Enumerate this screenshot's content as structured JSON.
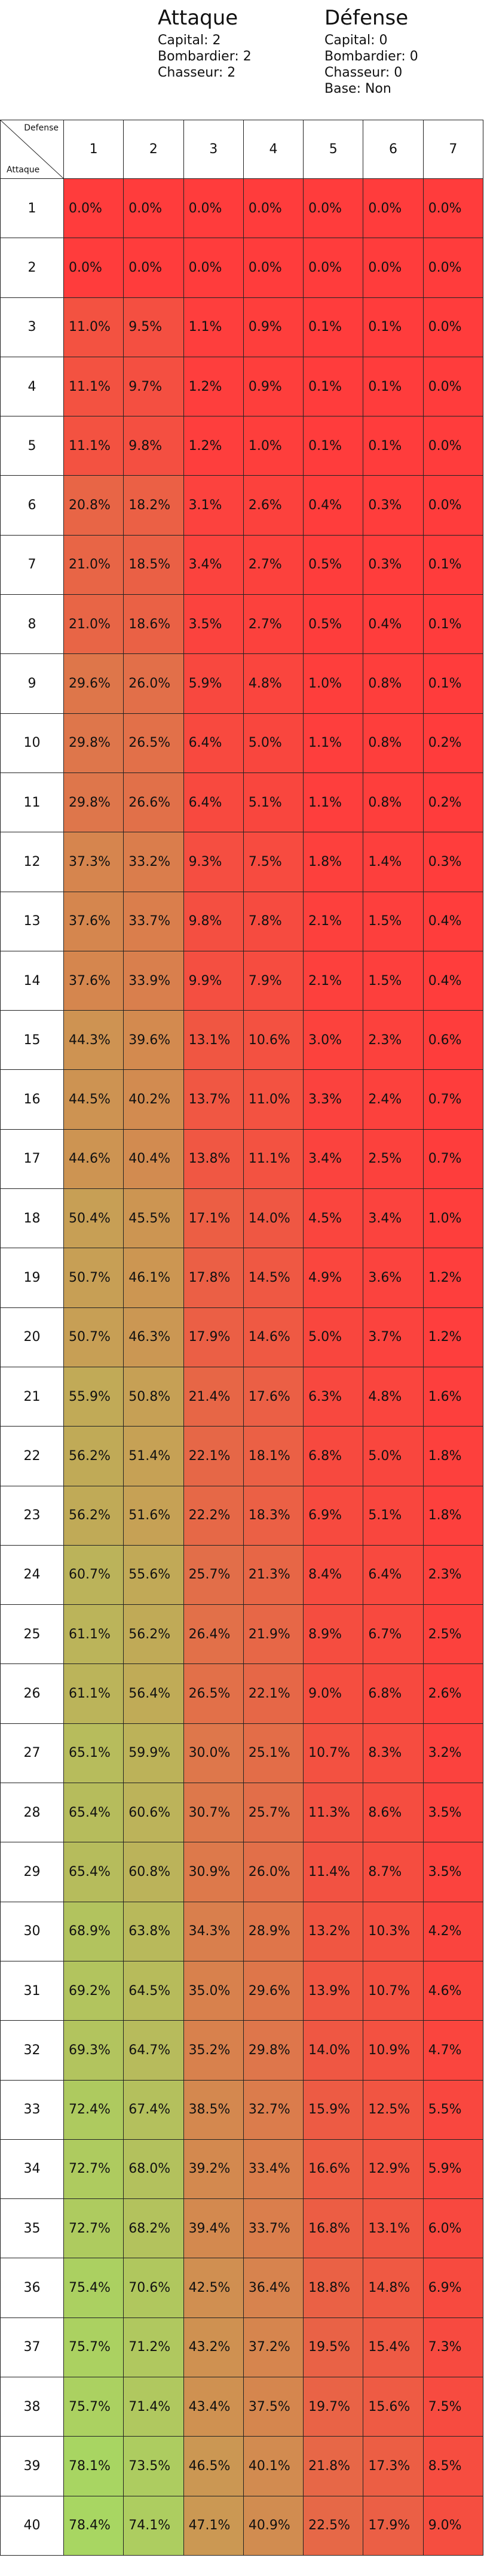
{
  "attack": {
    "title": "Attaque",
    "lines": [
      "Capital: 2",
      "Bombardier: 2",
      "Chasseur: 2"
    ]
  },
  "defense": {
    "title": "Défense",
    "lines": [
      "Capital: 0",
      "Bombardier: 0",
      "Chasseur: 0",
      "Base: Non"
    ]
  },
  "corner": {
    "defense_label": "Defense",
    "attack_label": "Attaque"
  },
  "columns": [
    "1",
    "2",
    "3",
    "4",
    "5",
    "6",
    "7"
  ],
  "colors": {
    "low": "#ff3c3c",
    "high": "#a6d963"
  },
  "rows": [
    {
      "label": "1",
      "values": [
        "0.0%",
        "0.0%",
        "0.0%",
        "0.0%",
        "0.0%",
        "0.0%",
        "0.0%"
      ]
    },
    {
      "label": "2",
      "values": [
        "0.0%",
        "0.0%",
        "0.0%",
        "0.0%",
        "0.0%",
        "0.0%",
        "0.0%"
      ]
    },
    {
      "label": "3",
      "values": [
        "11.0%",
        "9.5%",
        "1.1%",
        "0.9%",
        "0.1%",
        "0.1%",
        "0.0%"
      ]
    },
    {
      "label": "4",
      "values": [
        "11.1%",
        "9.7%",
        "1.2%",
        "0.9%",
        "0.1%",
        "0.1%",
        "0.0%"
      ]
    },
    {
      "label": "5",
      "values": [
        "11.1%",
        "9.8%",
        "1.2%",
        "1.0%",
        "0.1%",
        "0.1%",
        "0.0%"
      ]
    },
    {
      "label": "6",
      "values": [
        "20.8%",
        "18.2%",
        "3.1%",
        "2.6%",
        "0.4%",
        "0.3%",
        "0.0%"
      ]
    },
    {
      "label": "7",
      "values": [
        "21.0%",
        "18.5%",
        "3.4%",
        "2.7%",
        "0.5%",
        "0.3%",
        "0.1%"
      ]
    },
    {
      "label": "8",
      "values": [
        "21.0%",
        "18.6%",
        "3.5%",
        "2.7%",
        "0.5%",
        "0.4%",
        "0.1%"
      ]
    },
    {
      "label": "9",
      "values": [
        "29.6%",
        "26.0%",
        "5.9%",
        "4.8%",
        "1.0%",
        "0.8%",
        "0.1%"
      ]
    },
    {
      "label": "10",
      "values": [
        "29.8%",
        "26.5%",
        "6.4%",
        "5.0%",
        "1.1%",
        "0.8%",
        "0.2%"
      ]
    },
    {
      "label": "11",
      "values": [
        "29.8%",
        "26.6%",
        "6.4%",
        "5.1%",
        "1.1%",
        "0.8%",
        "0.2%"
      ]
    },
    {
      "label": "12",
      "values": [
        "37.3%",
        "33.2%",
        "9.3%",
        "7.5%",
        "1.8%",
        "1.4%",
        "0.3%"
      ]
    },
    {
      "label": "13",
      "values": [
        "37.6%",
        "33.7%",
        "9.8%",
        "7.8%",
        "2.1%",
        "1.5%",
        "0.4%"
      ]
    },
    {
      "label": "14",
      "values": [
        "37.6%",
        "33.9%",
        "9.9%",
        "7.9%",
        "2.1%",
        "1.5%",
        "0.4%"
      ]
    },
    {
      "label": "15",
      "values": [
        "44.3%",
        "39.6%",
        "13.1%",
        "10.6%",
        "3.0%",
        "2.3%",
        "0.6%"
      ]
    },
    {
      "label": "16",
      "values": [
        "44.5%",
        "40.2%",
        "13.7%",
        "11.0%",
        "3.3%",
        "2.4%",
        "0.7%"
      ]
    },
    {
      "label": "17",
      "values": [
        "44.6%",
        "40.4%",
        "13.8%",
        "11.1%",
        "3.4%",
        "2.5%",
        "0.7%"
      ]
    },
    {
      "label": "18",
      "values": [
        "50.4%",
        "45.5%",
        "17.1%",
        "14.0%",
        "4.5%",
        "3.4%",
        "1.0%"
      ]
    },
    {
      "label": "19",
      "values": [
        "50.7%",
        "46.1%",
        "17.8%",
        "14.5%",
        "4.9%",
        "3.6%",
        "1.2%"
      ]
    },
    {
      "label": "20",
      "values": [
        "50.7%",
        "46.3%",
        "17.9%",
        "14.6%",
        "5.0%",
        "3.7%",
        "1.2%"
      ]
    },
    {
      "label": "21",
      "values": [
        "55.9%",
        "50.8%",
        "21.4%",
        "17.6%",
        "6.3%",
        "4.8%",
        "1.6%"
      ]
    },
    {
      "label": "22",
      "values": [
        "56.2%",
        "51.4%",
        "22.1%",
        "18.1%",
        "6.8%",
        "5.0%",
        "1.8%"
      ]
    },
    {
      "label": "23",
      "values": [
        "56.2%",
        "51.6%",
        "22.2%",
        "18.3%",
        "6.9%",
        "5.1%",
        "1.8%"
      ]
    },
    {
      "label": "24",
      "values": [
        "60.7%",
        "55.6%",
        "25.7%",
        "21.3%",
        "8.4%",
        "6.4%",
        "2.3%"
      ]
    },
    {
      "label": "25",
      "values": [
        "61.1%",
        "56.2%",
        "26.4%",
        "21.9%",
        "8.9%",
        "6.7%",
        "2.5%"
      ]
    },
    {
      "label": "26",
      "values": [
        "61.1%",
        "56.4%",
        "26.5%",
        "22.1%",
        "9.0%",
        "6.8%",
        "2.6%"
      ]
    },
    {
      "label": "27",
      "values": [
        "65.1%",
        "59.9%",
        "30.0%",
        "25.1%",
        "10.7%",
        "8.3%",
        "3.2%"
      ]
    },
    {
      "label": "28",
      "values": [
        "65.4%",
        "60.6%",
        "30.7%",
        "25.7%",
        "11.3%",
        "8.6%",
        "3.5%"
      ]
    },
    {
      "label": "29",
      "values": [
        "65.4%",
        "60.8%",
        "30.9%",
        "26.0%",
        "11.4%",
        "8.7%",
        "3.5%"
      ]
    },
    {
      "label": "30",
      "values": [
        "68.9%",
        "63.8%",
        "34.3%",
        "28.9%",
        "13.2%",
        "10.3%",
        "4.2%"
      ]
    },
    {
      "label": "31",
      "values": [
        "69.2%",
        "64.5%",
        "35.0%",
        "29.6%",
        "13.9%",
        "10.7%",
        "4.6%"
      ]
    },
    {
      "label": "32",
      "values": [
        "69.3%",
        "64.7%",
        "35.2%",
        "29.8%",
        "14.0%",
        "10.9%",
        "4.7%"
      ]
    },
    {
      "label": "33",
      "values": [
        "72.4%",
        "67.4%",
        "38.5%",
        "32.7%",
        "15.9%",
        "12.5%",
        "5.5%"
      ]
    },
    {
      "label": "34",
      "values": [
        "72.7%",
        "68.0%",
        "39.2%",
        "33.4%",
        "16.6%",
        "12.9%",
        "5.9%"
      ]
    },
    {
      "label": "35",
      "values": [
        "72.7%",
        "68.2%",
        "39.4%",
        "33.7%",
        "16.8%",
        "13.1%",
        "6.0%"
      ]
    },
    {
      "label": "36",
      "values": [
        "75.4%",
        "70.6%",
        "42.5%",
        "36.4%",
        "18.8%",
        "14.8%",
        "6.9%"
      ]
    },
    {
      "label": "37",
      "values": [
        "75.7%",
        "71.2%",
        "43.2%",
        "37.2%",
        "19.5%",
        "15.4%",
        "7.3%"
      ]
    },
    {
      "label": "38",
      "values": [
        "75.7%",
        "71.4%",
        "43.4%",
        "37.5%",
        "19.7%",
        "15.6%",
        "7.5%"
      ]
    },
    {
      "label": "39",
      "values": [
        "78.1%",
        "73.5%",
        "46.5%",
        "40.1%",
        "21.8%",
        "17.3%",
        "8.5%"
      ]
    },
    {
      "label": "40",
      "values": [
        "78.4%",
        "74.1%",
        "47.1%",
        "40.9%",
        "22.5%",
        "17.9%",
        "9.0%"
      ]
    }
  ]
}
